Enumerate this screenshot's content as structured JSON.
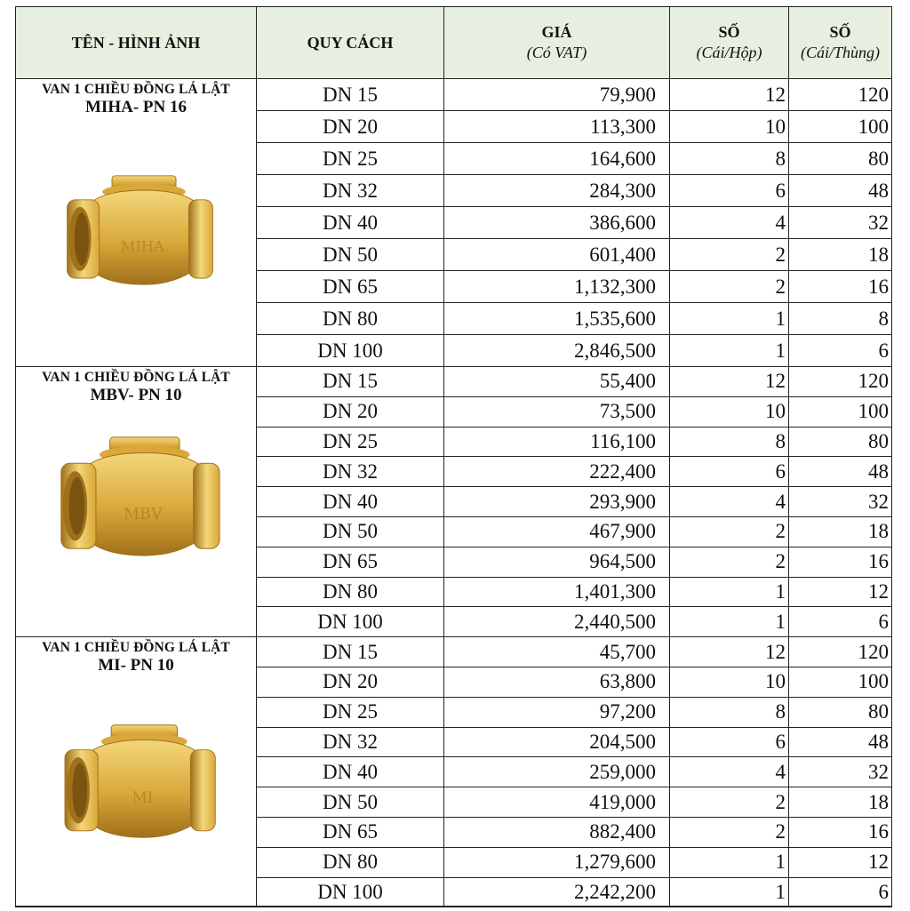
{
  "header": {
    "col_name": "TÊN - HÌNH ẢNH",
    "col_spec": "QUY CÁCH",
    "col_price": "GIÁ",
    "col_price_sub": "(Có VAT)",
    "col_box": "SỐ",
    "col_box_sub": "(Cái/Hộp)",
    "col_carton": "SỐ",
    "col_carton_sub": "(Cái/Thùng)"
  },
  "products": [
    {
      "title": "VAN 1 CHIỀU ĐỒNG LÁ LẬT",
      "model": "MIHA- PN 16",
      "image_icon": "brass-check-valve-icon",
      "image_mark": "MIHA",
      "rows": [
        {
          "spec": "DN 15",
          "price": "79,900",
          "box": "12",
          "carton": "120"
        },
        {
          "spec": "DN 20",
          "price": "113,300",
          "box": "10",
          "carton": "100"
        },
        {
          "spec": "DN 25",
          "price": "164,600",
          "box": "8",
          "carton": "80"
        },
        {
          "spec": "DN 32",
          "price": "284,300",
          "box": "6",
          "carton": "48"
        },
        {
          "spec": "DN 40",
          "price": "386,600",
          "box": "4",
          "carton": "32"
        },
        {
          "spec": "DN 50",
          "price": "601,400",
          "box": "2",
          "carton": "18"
        },
        {
          "spec": "DN 65",
          "price": "1,132,300",
          "box": "2",
          "carton": "16"
        },
        {
          "spec": "DN 80",
          "price": "1,535,600",
          "box": "1",
          "carton": "8"
        },
        {
          "spec": "DN 100",
          "price": "2,846,500",
          "box": "1",
          "carton": "6"
        }
      ]
    },
    {
      "title": "VAN 1 CHIỀU ĐỒNG LÁ LẬT",
      "model": "MBV- PN 10",
      "image_icon": "brass-check-valve-icon",
      "image_mark": "MBV",
      "rows": [
        {
          "spec": "DN 15",
          "price": "55,400",
          "box": "12",
          "carton": "120"
        },
        {
          "spec": "DN 20",
          "price": "73,500",
          "box": "10",
          "carton": "100"
        },
        {
          "spec": "DN 25",
          "price": "116,100",
          "box": "8",
          "carton": "80"
        },
        {
          "spec": "DN 32",
          "price": "222,400",
          "box": "6",
          "carton": "48"
        },
        {
          "spec": "DN 40",
          "price": "293,900",
          "box": "4",
          "carton": "32"
        },
        {
          "spec": "DN 50",
          "price": "467,900",
          "box": "2",
          "carton": "18"
        },
        {
          "spec": "DN 65",
          "price": "964,500",
          "box": "2",
          "carton": "16"
        },
        {
          "spec": "DN 80",
          "price": "1,401,300",
          "box": "1",
          "carton": "12"
        },
        {
          "spec": "DN 100",
          "price": "2,440,500",
          "box": "1",
          "carton": "6"
        }
      ]
    },
    {
      "title": "VAN 1 CHIỀU ĐỒNG LÁ LẬT",
      "model": "MI- PN 10",
      "image_icon": "brass-check-valve-icon",
      "image_mark": "MI",
      "rows": [
        {
          "spec": "DN 15",
          "price": "45,700",
          "box": "12",
          "carton": "120"
        },
        {
          "spec": "DN 20",
          "price": "63,800",
          "box": "10",
          "carton": "100"
        },
        {
          "spec": "DN 25",
          "price": "97,200",
          "box": "8",
          "carton": "80"
        },
        {
          "spec": "DN 32",
          "price": "204,500",
          "box": "6",
          "carton": "48"
        },
        {
          "spec": "DN 40",
          "price": "259,000",
          "box": "4",
          "carton": "32"
        },
        {
          "spec": "DN 50",
          "price": "419,000",
          "box": "2",
          "carton": "18"
        },
        {
          "spec": "DN 65",
          "price": "882,400",
          "box": "2",
          "carton": "16"
        },
        {
          "spec": "DN 80",
          "price": "1,279,600",
          "box": "1",
          "carton": "12"
        },
        {
          "spec": "DN 100",
          "price": "2,242,200",
          "box": "1",
          "carton": "6"
        }
      ]
    }
  ],
  "colors": {
    "header_bg": "#e7efe0",
    "brass_light": "#f3d77a",
    "brass_mid": "#d9a83a",
    "brass_dark": "#a0701a",
    "grid": "#222222"
  }
}
